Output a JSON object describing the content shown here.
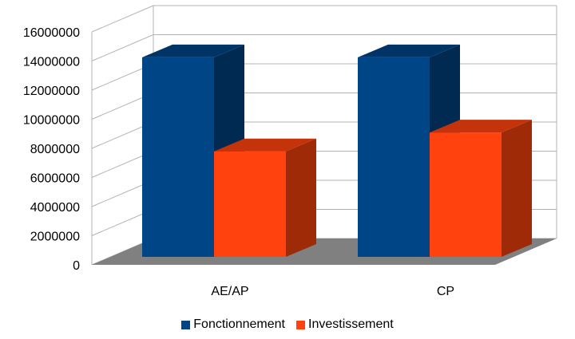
{
  "chart_data": {
    "type": "bar",
    "categories": [
      "AE/AP",
      "CP"
    ],
    "series": [
      {
        "name": "Fonctionnement",
        "values": [
          13800000,
          13800000
        ],
        "color": "#004586",
        "side_color": "#002a52",
        "top_color": "#003366"
      },
      {
        "name": "Investissement",
        "values": [
          7300000,
          8600000
        ],
        "color": "#ff420e",
        "side_color": "#9e2a08",
        "top_color": "#c4330a"
      }
    ],
    "ylim": [
      0,
      16000000
    ],
    "yticks": [
      "0",
      "2000000",
      "4000000",
      "6000000",
      "8000000",
      "10000000",
      "12000000",
      "14000000",
      "16000000"
    ],
    "grid": true,
    "legend_position": "bottom",
    "floor_color": "#808080",
    "grid_color": "#b3b3b3"
  }
}
